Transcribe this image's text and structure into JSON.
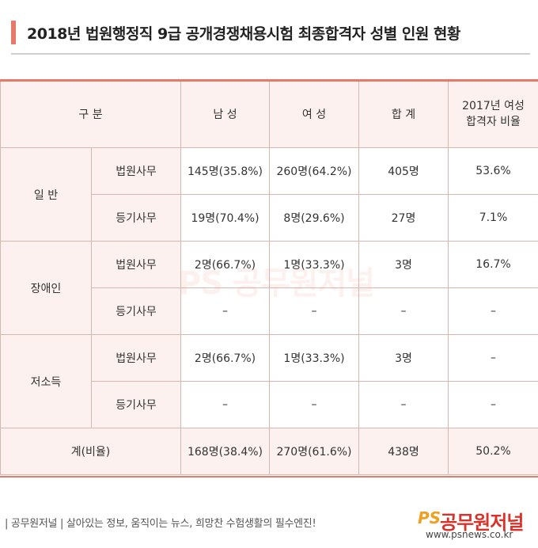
{
  "title": "2018년 법원행정직 9급 공개경쟁채용시험 최종합격자 성별 인원 현황",
  "table": {
    "headers": {
      "category": "구 분",
      "male": "남 성",
      "female": "여 성",
      "total": "합 계",
      "ratio": "2017년 여성합격자 비율"
    },
    "groups": [
      {
        "name": "일 반",
        "rows": [
          {
            "type": "법원사무",
            "male": "145명(35.8%)",
            "female": "260명(64.2%)",
            "total": "405명",
            "ratio": "53.6%"
          },
          {
            "type": "등기사무",
            "male": "19명(70.4%)",
            "female": "8명(29.6%)",
            "total": "27명",
            "ratio": "7.1%"
          }
        ]
      },
      {
        "name": "장애인",
        "rows": [
          {
            "type": "법원사무",
            "male": "2명(66.7%)",
            "female": "1명(33.3%)",
            "total": "3명",
            "ratio": "16.7%"
          },
          {
            "type": "등기사무",
            "male": "–",
            "female": "–",
            "total": "–",
            "ratio": "–"
          }
        ]
      },
      {
        "name": "저소득",
        "rows": [
          {
            "type": "법원사무",
            "male": "2명(66.7%)",
            "female": "1명(33.3%)",
            "total": "3명",
            "ratio": "–"
          },
          {
            "type": "등기사무",
            "male": "–",
            "female": "–",
            "total": "–",
            "ratio": "–"
          }
        ]
      }
    ],
    "total_row": {
      "label": "계(비율)",
      "male": "168명(38.4%)",
      "female": "270명(61.6%)",
      "total": "438명",
      "ratio": "50.2%"
    }
  },
  "watermark": "PS 공무원저널",
  "footer": {
    "text": "| 공무원저널 | 살아있는 정보, 움직이는 뉴스, 희망찬 수험생활의 필수엔진!",
    "logo_ps": "PS",
    "logo_name": "공무원저널",
    "url": "www.psnews.co.kr"
  },
  "colors": {
    "accent": "#e8786a",
    "header_bg": "#fcf1ee",
    "border": "#d8b7b1"
  }
}
